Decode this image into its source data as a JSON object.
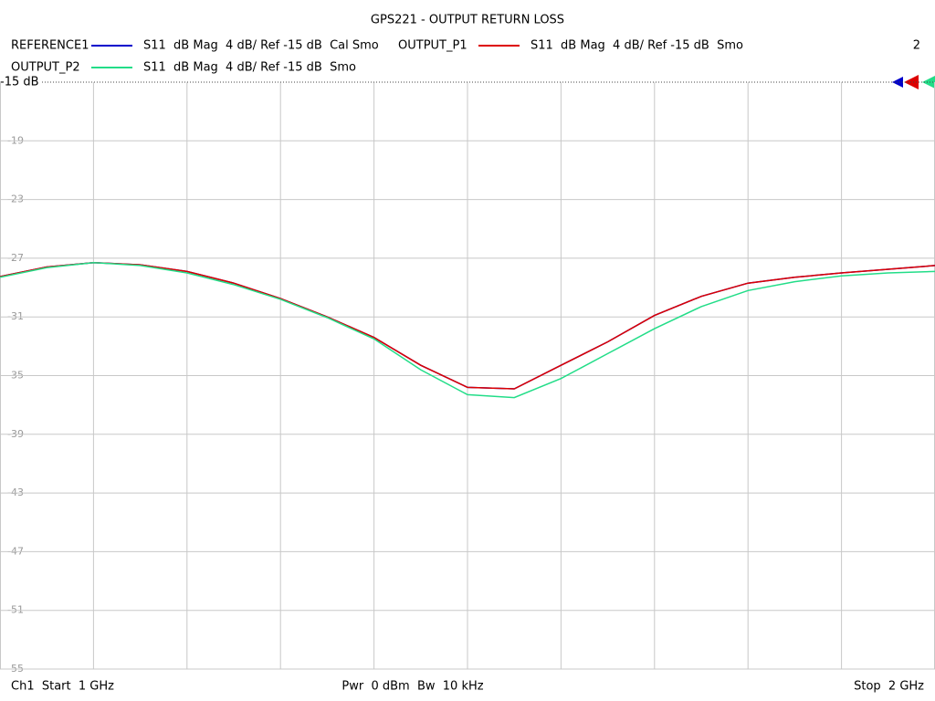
{
  "chart_data": {
    "type": "line",
    "title": "GPS221 - OUTPUT RETURN LOSS",
    "channel_number": "2",
    "start_label": "Ch1  Start  1 GHz",
    "center_label": "Pwr  0 dBm  Bw  10 kHz",
    "stop_label": "Stop  2 GHz",
    "x": [
      1.0,
      1.05,
      1.1,
      1.15,
      1.2,
      1.25,
      1.3,
      1.35,
      1.4,
      1.45,
      1.5,
      1.55,
      1.6,
      1.65,
      1.7,
      1.75,
      1.8,
      1.85,
      1.9,
      1.95,
      2.0
    ],
    "xlim": [
      1,
      2
    ],
    "ylim": [
      -55,
      -15
    ],
    "yticks": [
      {
        "value": -15,
        "label": "-15 dB"
      },
      -19,
      -23,
      -27,
      -31,
      -35,
      -39,
      -43,
      -47,
      -51,
      -55
    ],
    "grid": true,
    "series": [
      {
        "name": "REFERENCE1",
        "description": "S11  dB Mag  4 dB/ Ref -15 dB  Cal Smo",
        "color": "#0000cc",
        "values": [
          -28.25,
          -27.6,
          -27.3,
          -27.45,
          -27.9,
          -28.7,
          -29.75,
          -31.0,
          -32.4,
          -34.3,
          -35.8,
          -35.9,
          -34.3,
          -32.7,
          -30.9,
          -29.6,
          -28.7,
          -28.3,
          -28.0,
          -27.75,
          -27.5
        ]
      },
      {
        "name": "OUTPUT_P1",
        "description": "S11  dB Mag  4 dB/ Ref -15 dB  Smo",
        "color": "#dd0000",
        "values": [
          -28.25,
          -27.6,
          -27.3,
          -27.45,
          -27.9,
          -28.7,
          -29.75,
          -31.0,
          -32.4,
          -34.3,
          -35.8,
          -35.9,
          -34.3,
          -32.7,
          -30.9,
          -29.6,
          -28.7,
          -28.3,
          -28.0,
          -27.75,
          -27.5
        ]
      },
      {
        "name": "OUTPUT_P2",
        "description": "S11  dB Mag  4 dB/ Ref -15 dB  Smo",
        "color": "#22dd88",
        "values": [
          -28.3,
          -27.65,
          -27.3,
          -27.5,
          -28.0,
          -28.8,
          -29.8,
          -31.05,
          -32.5,
          -34.6,
          -36.3,
          -36.5,
          -35.2,
          -33.5,
          -31.8,
          -30.3,
          -29.2,
          -28.6,
          -28.2,
          -28.0,
          -27.9
        ]
      }
    ]
  }
}
